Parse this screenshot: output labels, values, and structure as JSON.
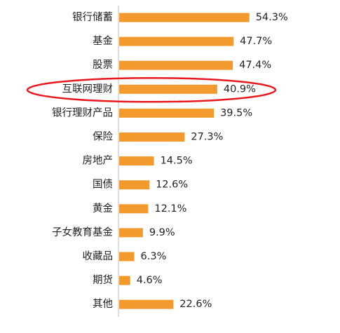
{
  "chart_data": {
    "type": "bar",
    "orientation": "horizontal",
    "categories": [
      "银行储蓄",
      "基金",
      "股票",
      "互联网理财",
      "银行理财产品",
      "保险",
      "房地产",
      "国债",
      "黄金",
      "子女教育基金",
      "收藏品",
      "期货",
      "其他"
    ],
    "values": [
      54.3,
      47.7,
      47.4,
      40.9,
      39.5,
      27.3,
      14.5,
      12.6,
      12.1,
      9.9,
      6.3,
      4.6,
      22.6
    ],
    "value_labels": [
      "54.3%",
      "47.7%",
      "47.4%",
      "40.9%",
      "39.5%",
      "27.3%",
      "14.5%",
      "12.6%",
      "12.1%",
      "9.9%",
      "6.3%",
      "4.6%",
      "22.6%"
    ],
    "highlighted_category": "互联网理财",
    "colors": {
      "bar": "#f39a2f",
      "axis": "#bdbdbd",
      "highlight": "#e8191e",
      "text": "#222222"
    }
  }
}
